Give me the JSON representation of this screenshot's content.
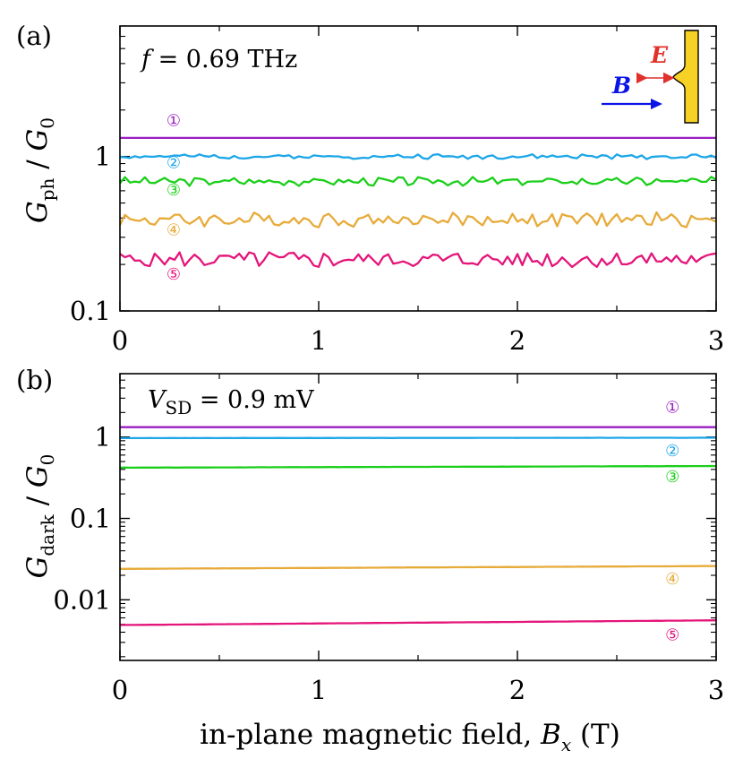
{
  "chart_data": [
    {
      "type": "line",
      "panel_label": "(a)",
      "annotation": {
        "italic": "f",
        "rest": " = 0.69 THz"
      },
      "ylabel": {
        "main": "G",
        "sub": "ph",
        "divider": " / ",
        "denom": "G",
        "denom_sub": "0"
      },
      "yscale": "log",
      "ylim": [
        0.1,
        7
      ],
      "xlim": [
        0,
        3
      ],
      "xticks": [
        "0",
        "1",
        "2",
        "3"
      ],
      "yticks": [
        {
          "value": 0.1,
          "label": "0.1"
        },
        {
          "value": 1,
          "label": "1"
        }
      ],
      "inset": {
        "E_label": "E",
        "B_label": "B",
        "E_color": "#e0312b",
        "B_color": "#0a14e6",
        "contact_color": "#f7d126"
      },
      "series": [
        {
          "marker": "①",
          "color": "#9a1fc2",
          "base": 1.32,
          "noise": 0.0,
          "ripple": 0.0,
          "seed": 1,
          "label_x": 0.27,
          "label_y": 1.58
        },
        {
          "marker": "②",
          "color": "#1da6e8",
          "base": 1.0,
          "noise": 0.03,
          "ripple": 0.01,
          "seed": 2,
          "label_x": 0.27,
          "label_y": 0.84
        },
        {
          "marker": "③",
          "color": "#1bcf1b",
          "base": 0.69,
          "noise": 0.05,
          "ripple": 0.02,
          "seed": 3,
          "label_x": 0.27,
          "label_y": 0.56
        },
        {
          "marker": "④",
          "color": "#e7ab3a",
          "base": 0.39,
          "noise": 0.09,
          "ripple": 0.03,
          "seed": 4,
          "label_x": 0.27,
          "label_y": 0.31
        },
        {
          "marker": "⑤",
          "color": "#e4157a",
          "base": 0.215,
          "noise": 0.11,
          "ripple": 0.03,
          "seed": 5,
          "label_x": 0.27,
          "label_y": 0.16
        }
      ]
    },
    {
      "type": "line",
      "panel_label": "(b)",
      "annotation": {
        "italic": "V",
        "sub": "SD",
        "rest": " = 0.9 mV"
      },
      "ylabel": {
        "main": "G",
        "sub": "dark",
        "divider": " / ",
        "denom": "G",
        "denom_sub": "0"
      },
      "yscale": "log",
      "ylim": [
        0.0018,
        6
      ],
      "xlim": [
        0,
        3
      ],
      "xticks": [
        "0",
        "1",
        "2",
        "3"
      ],
      "yticks": [
        {
          "value": 0.01,
          "label": "0.01"
        },
        {
          "value": 0.1,
          "label": "0.1"
        },
        {
          "value": 1,
          "label": "1"
        }
      ],
      "xlabel": {
        "prefix": "in-plane magnetic field, ",
        "italic": "B",
        "sub": "x",
        "suffix": " (T)"
      },
      "series": [
        {
          "marker": "①",
          "color": "#9a1fc2",
          "start": 1.32,
          "end": 1.32,
          "noise": 0.0,
          "seed": 6,
          "label_x": 2.78,
          "label_y": 2.0
        },
        {
          "marker": "②",
          "color": "#1da6e8",
          "start": 0.97,
          "end": 0.98,
          "noise": 0.003,
          "seed": 7,
          "label_x": 2.78,
          "label_y": 0.58
        },
        {
          "marker": "③",
          "color": "#1bcf1b",
          "start": 0.42,
          "end": 0.44,
          "noise": 0.003,
          "seed": 8,
          "label_x": 2.78,
          "label_y": 0.28
        },
        {
          "marker": "④",
          "color": "#e7ab3a",
          "start": 0.024,
          "end": 0.026,
          "noise": 0.003,
          "seed": 9,
          "label_x": 2.78,
          "label_y": 0.0155
        },
        {
          "marker": "⑤",
          "color": "#e4157a",
          "start": 0.0049,
          "end": 0.0056,
          "noise": 0.003,
          "seed": 10,
          "label_x": 2.78,
          "label_y": 0.0032
        }
      ]
    }
  ]
}
